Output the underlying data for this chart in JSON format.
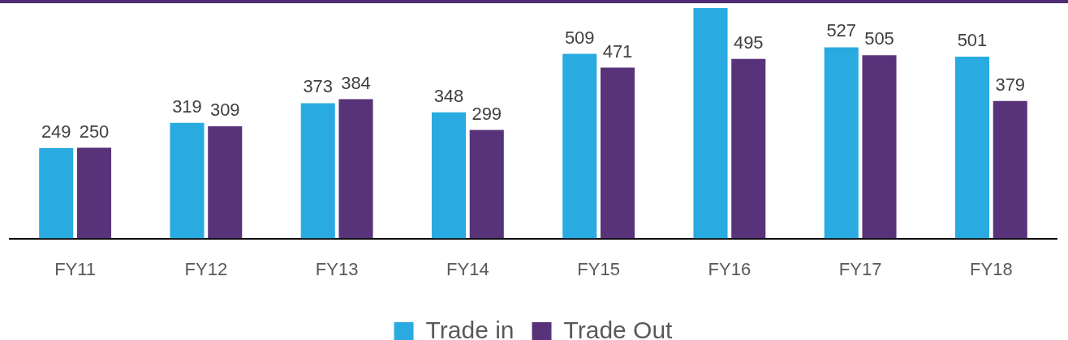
{
  "chart_data": {
    "type": "bar",
    "categories": [
      "FY11",
      "FY12",
      "FY13",
      "FY14",
      "FY15",
      "FY16",
      "FY17",
      "FY18"
    ],
    "series": [
      {
        "name": "Trade in",
        "color": "#29abe2",
        "values": [
          249,
          319,
          373,
          348,
          509,
          635,
          527,
          501
        ],
        "value_labels": [
          "249",
          "319",
          "373",
          "348",
          "509",
          null,
          "527",
          "501"
        ]
      },
      {
        "name": "Trade Out",
        "color": "#58337a",
        "values": [
          250,
          309,
          384,
          299,
          471,
          495,
          505,
          379
        ],
        "value_labels": [
          "250",
          "309",
          "384",
          "299",
          "471",
          "495",
          "505",
          "379"
        ]
      }
    ],
    "legend": "bottom"
  }
}
